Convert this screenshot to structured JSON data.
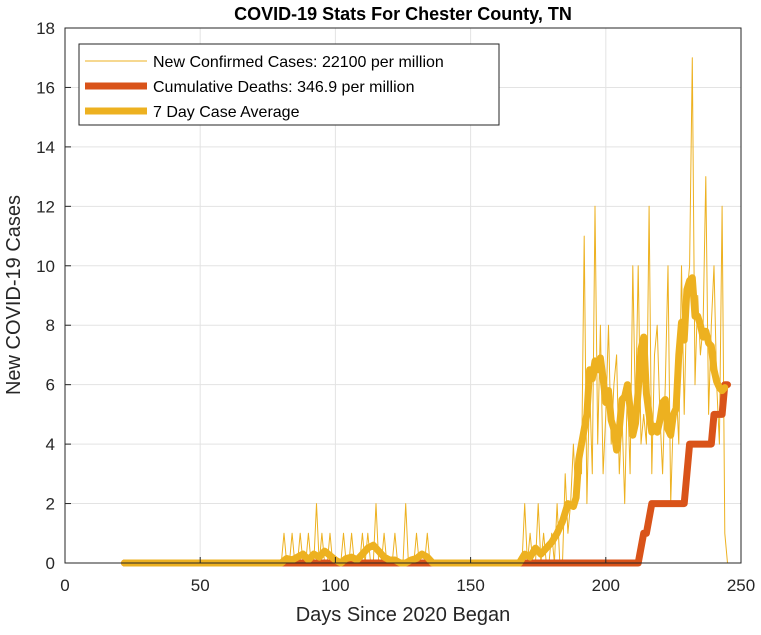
{
  "chart_data": {
    "type": "line",
    "title": "COVID-19 Stats For Chester County, TN",
    "xlabel": "Days Since 2020 Began",
    "ylabel": "New COVID-19 Cases",
    "xlim": [
      0,
      250
    ],
    "ylim": [
      0,
      18
    ],
    "xticks": [
      0,
      50,
      100,
      150,
      200,
      250
    ],
    "yticks": [
      0,
      2,
      4,
      6,
      8,
      10,
      12,
      14,
      16,
      18
    ],
    "grid": true,
    "legend": {
      "position": "top-left"
    },
    "series": [
      {
        "name": "New Confirmed Cases: 22100 per million",
        "color": "#EDB120",
        "style": "thin",
        "x": [
          22,
          80,
          81,
          82,
          83,
          84,
          85,
          86,
          87,
          88,
          89,
          90,
          91,
          92,
          93,
          94,
          95,
          96,
          97,
          98,
          99,
          100,
          101,
          102,
          103,
          104,
          105,
          106,
          107,
          108,
          109,
          110,
          111,
          112,
          113,
          114,
          115,
          116,
          117,
          118,
          119,
          120,
          121,
          122,
          123,
          124,
          125,
          126,
          127,
          128,
          129,
          130,
          131,
          132,
          133,
          134,
          135,
          136,
          137,
          138,
          139,
          140,
          150,
          160,
          165,
          166,
          167,
          168,
          169,
          170,
          171,
          172,
          173,
          174,
          175,
          176,
          177,
          178,
          179,
          180,
          181,
          182,
          183,
          184,
          185,
          186,
          187,
          188,
          189,
          190,
          191,
          192,
          193,
          194,
          195,
          196,
          197,
          198,
          199,
          200,
          201,
          202,
          203,
          204,
          205,
          206,
          207,
          208,
          209,
          210,
          211,
          212,
          213,
          214,
          215,
          216,
          217,
          218,
          219,
          220,
          221,
          222,
          223,
          224,
          225,
          226,
          227,
          228,
          229,
          230,
          231,
          232,
          233,
          234,
          235,
          236,
          237,
          238,
          239,
          240,
          241,
          242,
          243,
          244,
          245
        ],
        "y": [
          0,
          0,
          1,
          0,
          0,
          1,
          0,
          0,
          1,
          0,
          0,
          1,
          0,
          0,
          2,
          0,
          1,
          0,
          0,
          1,
          0,
          0,
          0,
          0,
          1,
          0,
          0,
          1,
          0,
          0,
          0,
          1,
          0,
          1,
          0,
          0,
          2,
          0,
          0,
          1,
          0,
          0,
          0,
          1,
          0,
          0,
          0,
          2,
          0,
          0,
          0,
          1,
          0,
          0,
          0,
          1,
          0,
          0,
          0,
          0,
          0,
          0,
          0,
          0,
          0,
          0,
          0,
          0,
          0,
          2,
          0,
          1,
          0,
          0,
          2,
          0,
          1,
          0,
          0,
          1,
          0,
          2,
          0,
          0,
          3,
          1,
          2,
          4,
          2,
          4,
          3,
          11,
          2,
          6,
          3,
          12,
          4,
          8,
          3,
          5,
          8,
          4,
          6,
          7,
          3,
          5,
          2,
          6,
          3,
          10,
          5,
          10,
          4,
          5,
          4,
          12,
          3,
          7,
          8,
          5,
          3,
          6,
          10,
          2,
          5,
          6,
          4,
          10,
          5,
          9,
          10,
          17,
          6,
          9,
          7,
          8,
          13,
          5,
          8,
          10,
          6,
          4,
          12,
          1,
          0
        ]
      },
      {
        "name": "Cumulative Deaths: 346.9 per million",
        "color": "#D95319",
        "style": "thick",
        "x": [
          22,
          212,
          214,
          215,
          217,
          228,
          229,
          230,
          231,
          238,
          239,
          240,
          243,
          244,
          245
        ],
        "y": [
          0,
          0,
          1,
          1,
          2,
          2,
          2,
          3,
          4,
          4,
          4,
          5,
          5,
          6,
          6
        ]
      },
      {
        "name": "7 Day Case Average",
        "color": "#EDB120",
        "style": "thick",
        "x": [
          22,
          80,
          82,
          84,
          86,
          88,
          90,
          92,
          94,
          95,
          96,
          98,
          100,
          102,
          104,
          106,
          108,
          110,
          112,
          114,
          116,
          118,
          120,
          122,
          124,
          126,
          128,
          130,
          132,
          134,
          136,
          140,
          150,
          160,
          168,
          170,
          172,
          174,
          176,
          178,
          180,
          182,
          184,
          186,
          188,
          189,
          190,
          192,
          193,
          194,
          195,
          196,
          197,
          198,
          199,
          200,
          201,
          202,
          203,
          204,
          205,
          206,
          207,
          208,
          209,
          210,
          211,
          212,
          213,
          214,
          215,
          216,
          217,
          218,
          219,
          220,
          221,
          222,
          223,
          224,
          225,
          226,
          227,
          228,
          229,
          230,
          231,
          232,
          233,
          234,
          235,
          236,
          237,
          238,
          239,
          240,
          241,
          242,
          243,
          244
        ],
        "y": [
          0,
          0,
          0.15,
          0.1,
          0.2,
          0.3,
          0.1,
          0.3,
          0.2,
          0.3,
          0.4,
          0.25,
          0.1,
          0,
          0.15,
          0.2,
          0.1,
          0.3,
          0.5,
          0.6,
          0.4,
          0.2,
          0.1,
          0.1,
          0,
          0,
          0.1,
          0.15,
          0.3,
          0.2,
          0,
          0,
          0,
          0,
          0,
          0.3,
          0.2,
          0.5,
          0.3,
          0.5,
          0.7,
          1,
          1.4,
          2,
          1.9,
          2.2,
          3.5,
          4.5,
          5,
          6.5,
          6.2,
          6.8,
          6.5,
          6.9,
          6.2,
          5.4,
          5.8,
          4.8,
          4.5,
          3.8,
          4.5,
          5.5,
          5.6,
          6,
          5.2,
          4.3,
          4.7,
          5.8,
          7.2,
          7.6,
          5.7,
          5,
          4.4,
          4.6,
          4.4,
          4.8,
          5.4,
          5.5,
          4.5,
          4.3,
          5,
          5.2,
          7,
          8.1,
          7.5,
          9.2,
          9.5,
          9.6,
          8.3,
          8.3,
          8,
          7.6,
          7.8,
          7.4,
          7.3,
          6.5,
          6.1,
          5.9,
          5.8,
          5.9
        ]
      }
    ]
  }
}
